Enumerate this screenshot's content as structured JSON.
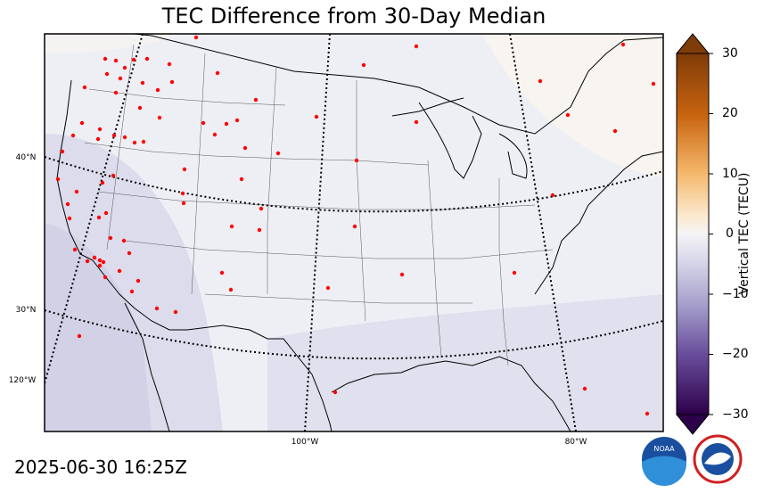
{
  "title": "TEC Difference from 30-Day Median",
  "timestamp": "2025-06-30 16:25Z",
  "colorbar": {
    "label": "Vertical TEC (TECU)",
    "ticks": [
      "30",
      "20",
      "10",
      "0",
      "−10",
      "−20",
      "−30"
    ],
    "range": [
      -30,
      30
    ],
    "colors": {
      "max": "#7f3b08",
      "positive": "#e08214",
      "light_positive": "#fee0b6",
      "neutral": "#f7f7f7",
      "light_negative": "#d8daeb",
      "negative": "#8073ac",
      "min": "#2d004b"
    }
  },
  "axis_labels": {
    "lat_40": "40°N",
    "lat_30": "30°N",
    "lon_120": "120°W",
    "lon_100": "100°W",
    "lon_80": "80°W"
  },
  "stations_color": "#ff0000",
  "logos": {
    "noaa": "NOAA"
  }
}
